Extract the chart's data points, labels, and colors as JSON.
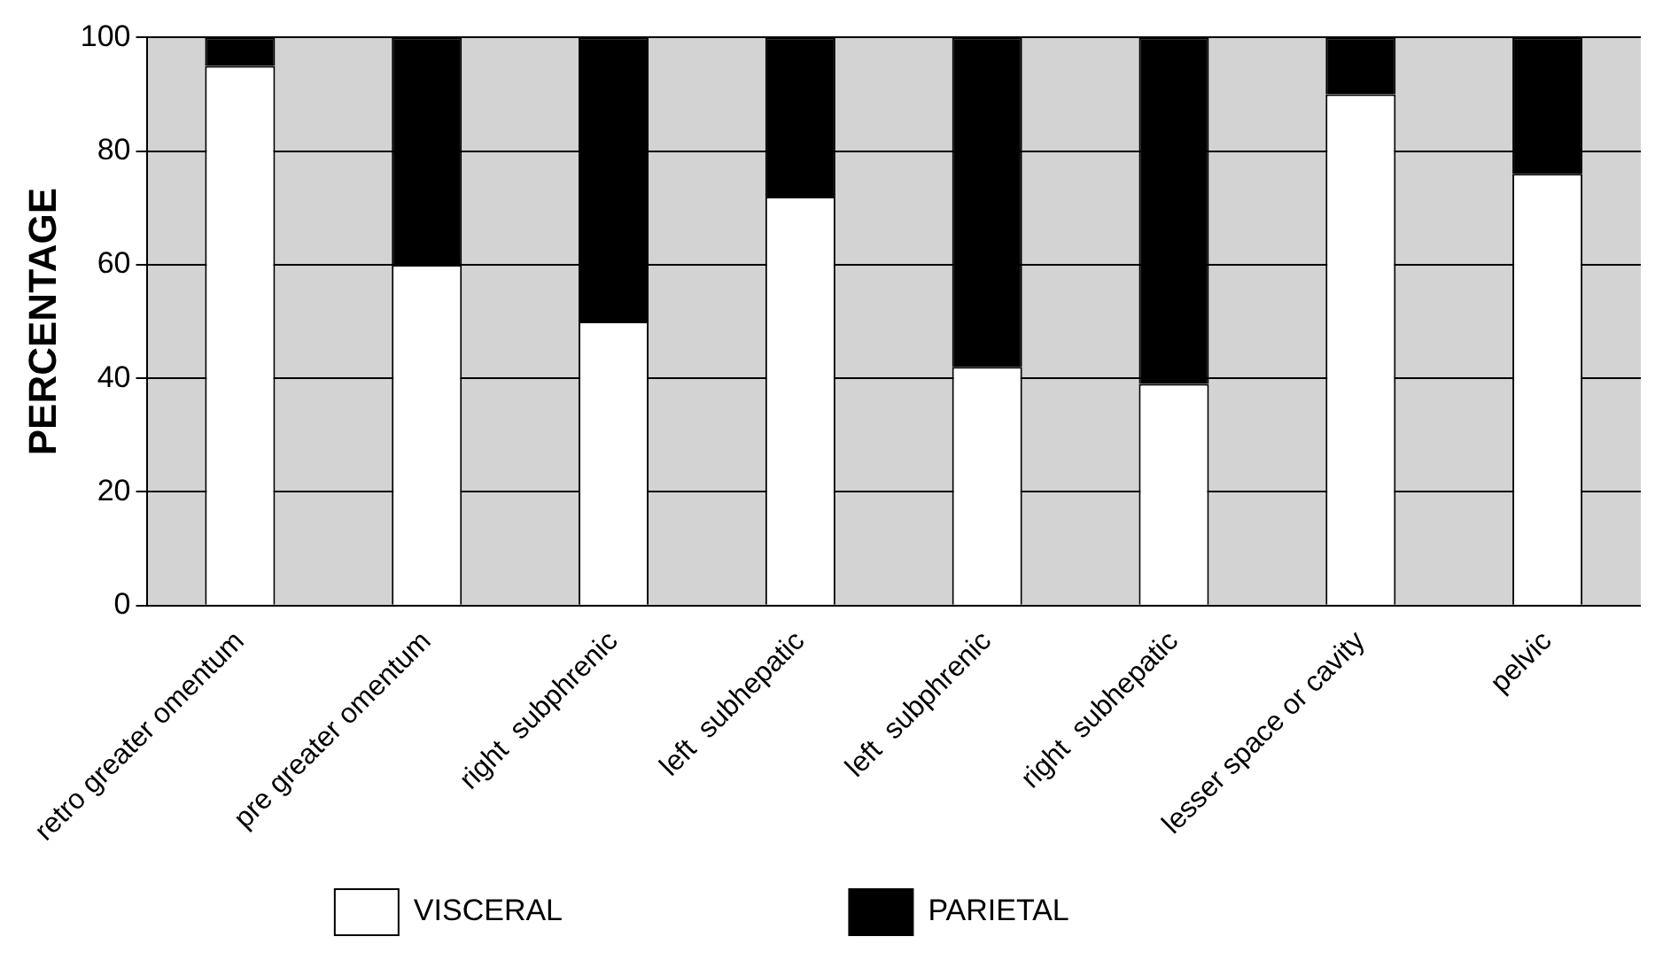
{
  "chart_data": {
    "type": "bar",
    "ylabel": "PERCENTAGE",
    "categories": [
      "retro greater omentum",
      "pre greater omentum",
      "right  subphrenic",
      "left  subhepatic",
      "left  subphrenic",
      "right  subhepatic",
      "lesser space or cavity",
      "pelvic"
    ],
    "series": [
      {
        "name": "VISCERAL",
        "color": "#ffffff",
        "values": [
          95,
          60,
          50,
          72,
          42,
          39,
          90,
          76
        ]
      },
      {
        "name": "PARIETAL",
        "color": "#000000",
        "values": [
          5,
          40,
          50,
          28,
          58,
          61,
          10,
          24
        ]
      }
    ],
    "stacked": true,
    "ylim": [
      0,
      100
    ],
    "yticks": [
      0,
      20,
      40,
      60,
      80,
      100
    ],
    "grid": "y",
    "legend": "bottom"
  }
}
